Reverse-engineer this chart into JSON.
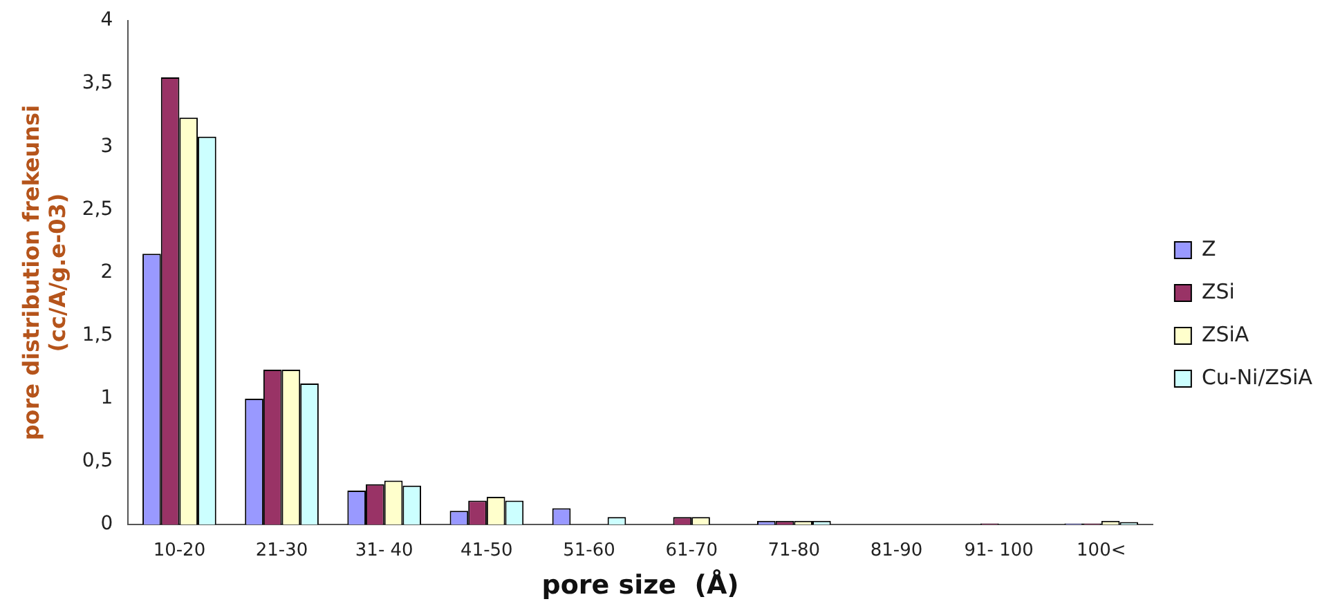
{
  "chart_data": {
    "type": "bar",
    "xlabel": "pore size  (Å)",
    "ylabel": "pore distribution frekeunsi\n(cc/A/g.e-03)",
    "categories": [
      "10-20",
      "21-30",
      "31- 40",
      "41-50",
      "51-60",
      "61-70",
      "71-80",
      "81-90",
      "91- 100",
      "100<"
    ],
    "series": [
      {
        "name": "Z",
        "color": "#9999ff",
        "values": [
          2.15,
          1.0,
          0.27,
          0.11,
          0.13,
          0,
          0.03,
          0,
          0,
          0.01
        ]
      },
      {
        "name": "ZSi",
        "color": "#993366",
        "values": [
          3.55,
          1.23,
          0.32,
          0.19,
          0,
          0.06,
          0.03,
          0,
          0.01,
          0.01
        ]
      },
      {
        "name": "ZSiA",
        "color": "#ffffcc",
        "values": [
          3.23,
          1.23,
          0.35,
          0.22,
          0,
          0.06,
          0.03,
          0,
          0,
          0.03
        ]
      },
      {
        "name": "Cu-Ni/ZSiA",
        "color": "#ccffff",
        "values": [
          3.08,
          1.12,
          0.31,
          0.19,
          0.06,
          0,
          0.03,
          0,
          0,
          0.02
        ]
      }
    ],
    "ylim": [
      0,
      4
    ],
    "yticks": [
      0,
      {
        "value": 0.5,
        "label": "0,5"
      },
      1,
      {
        "value": 1.5,
        "label": "1,5"
      },
      2,
      {
        "value": 2.5,
        "label": "2,5"
      },
      3,
      {
        "value": 3.5,
        "label": "3,5"
      },
      4
    ],
    "grid": false,
    "legend": "right"
  }
}
